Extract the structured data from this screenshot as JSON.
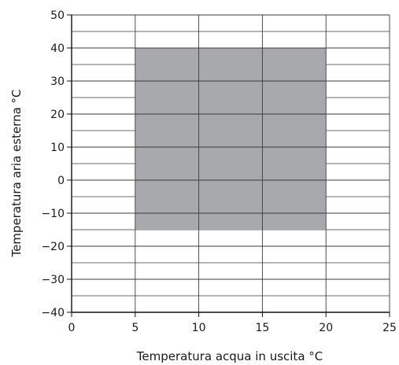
{
  "chart_data": {
    "type": "area",
    "xlabel": "Temperatura acqua in uscita °C",
    "ylabel": "Temperatura aria esterna °C",
    "xlim": [
      0,
      25
    ],
    "ylim": [
      -40,
      50
    ],
    "x_ticks": [
      "0",
      "5",
      "10",
      "15",
      "20",
      "25"
    ],
    "y_ticks": [
      "50",
      "40",
      "30",
      "20",
      "10",
      "0",
      "−10",
      "−20",
      "−30",
      "−40"
    ],
    "x_tick_values": [
      0,
      5,
      10,
      15,
      20,
      25
    ],
    "y_tick_values": [
      50,
      40,
      30,
      20,
      10,
      0,
      -10,
      -20,
      -30,
      -40
    ],
    "minor_y_step": 5,
    "grid": true,
    "region": {
      "x": [
        5,
        20
      ],
      "y": [
        -15,
        40
      ]
    },
    "region_color": "#a7a9ac",
    "grid_color": "#3c3c3c"
  }
}
